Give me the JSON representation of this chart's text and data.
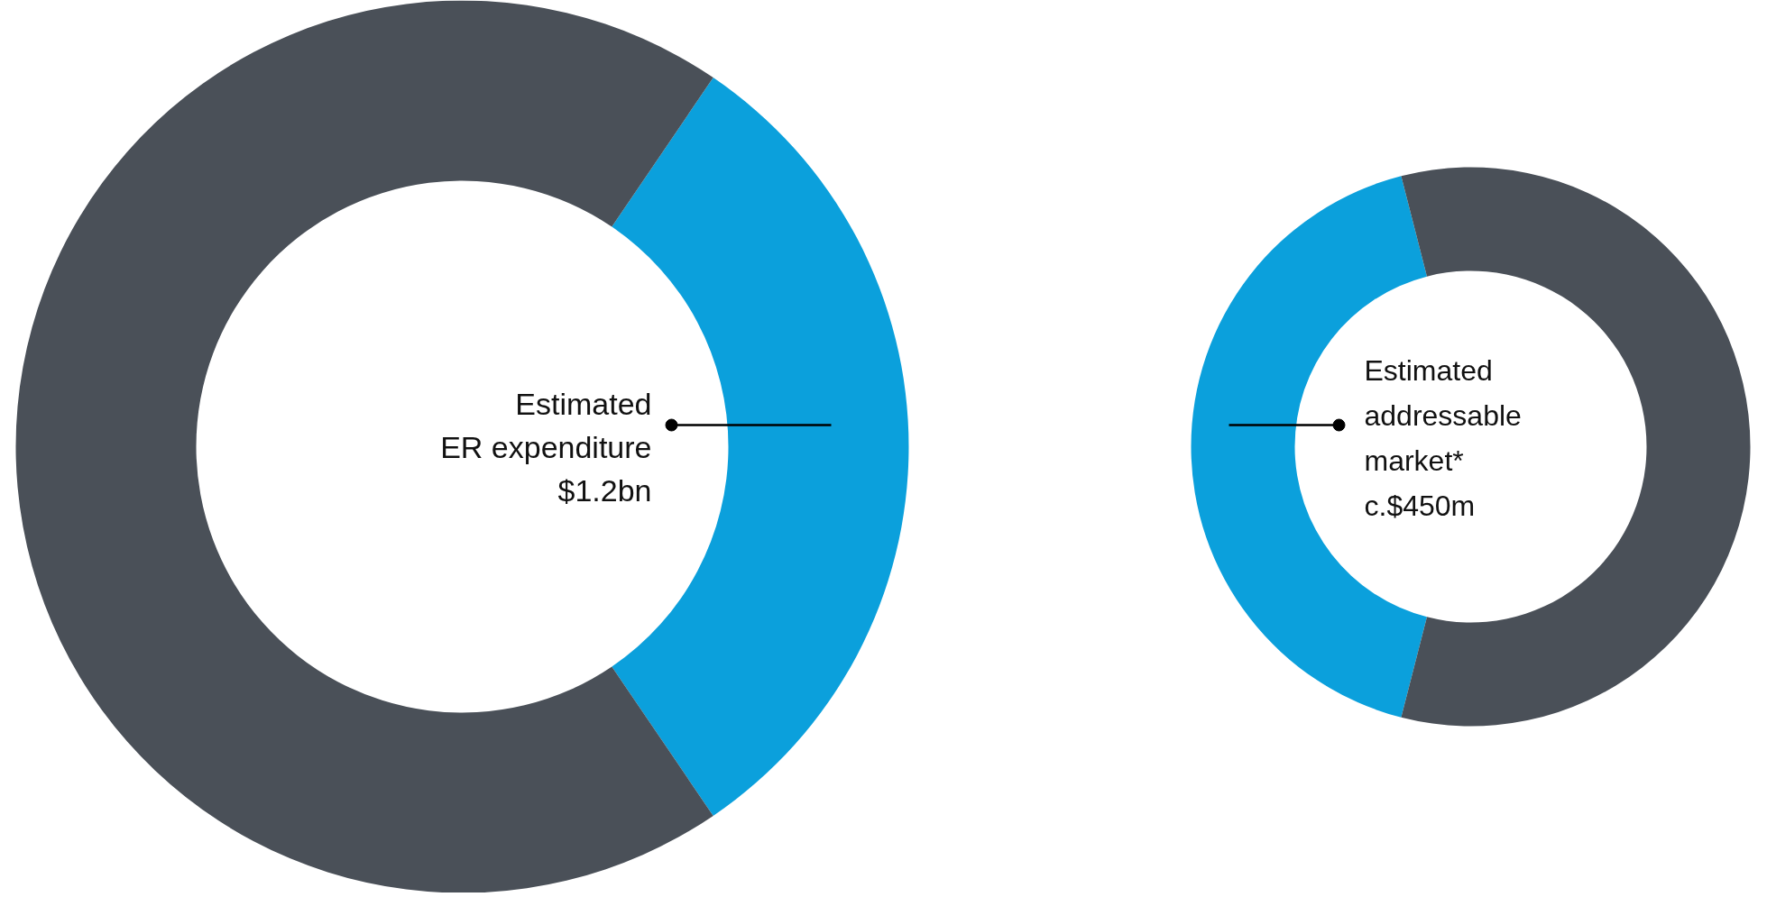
{
  "chart_data": [
    {
      "type": "donut",
      "categories": [
        null,
        null
      ],
      "values": [
        31,
        69
      ],
      "colors": [
        "#0ba0dc",
        "#4a5058"
      ],
      "annotations": [
        "Estimated\nER expenditure\n$1.2bn"
      ]
    },
    {
      "type": "donut",
      "categories": [
        null,
        null
      ],
      "values": [
        42,
        58
      ],
      "colors": [
        "#0ba0dc",
        "#4a5058"
      ],
      "annotations": [
        "Estimated\naddressable\nmarket*\nc.$450m"
      ]
    }
  ]
}
